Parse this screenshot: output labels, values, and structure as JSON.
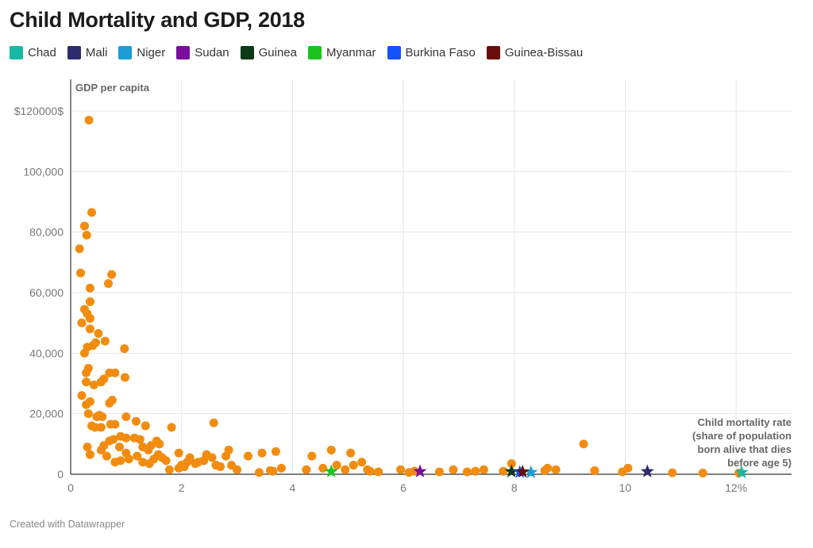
{
  "title": "Child Mortality and GDP, 2018",
  "footer": "Created with Datawrapper",
  "legend": [
    {
      "name": "Chad",
      "color": "#17b9a4"
    },
    {
      "name": "Mali",
      "color": "#2e2a6e"
    },
    {
      "name": "Niger",
      "color": "#1c9dd3"
    },
    {
      "name": "Sudan",
      "color": "#7a0e9c"
    },
    {
      "name": "Guinea",
      "color": "#0b3a14"
    },
    {
      "name": "Myanmar",
      "color": "#1bc41b"
    },
    {
      "name": "Burkina Faso",
      "color": "#1552ff"
    },
    {
      "name": "Guinea-Bissau",
      "color": "#6b0d0d"
    }
  ],
  "chart_data": {
    "type": "scatter",
    "title": "Child Mortality and GDP, 2018",
    "ylabel": "GDP per capita",
    "xlabel_lines": [
      "Child mortality rate",
      "(share of population",
      "born alive that dies",
      "before age 5)"
    ],
    "xlim": [
      0,
      13
    ],
    "ylim": [
      0,
      120000
    ],
    "x_ticks": [
      {
        "value": 0,
        "label": "0"
      },
      {
        "value": 2,
        "label": "2"
      },
      {
        "value": 4,
        "label": "4"
      },
      {
        "value": 6,
        "label": "6"
      },
      {
        "value": 8,
        "label": "8"
      },
      {
        "value": 10,
        "label": "10"
      },
      {
        "value": 12,
        "label": "12%"
      }
    ],
    "y_ticks": [
      {
        "value": 0,
        "label": "0"
      },
      {
        "value": 20000,
        "label": "20,000"
      },
      {
        "value": 40000,
        "label": "40,000"
      },
      {
        "value": 60000,
        "label": "60,000"
      },
      {
        "value": 80000,
        "label": "80,000"
      },
      {
        "value": 100000,
        "label": "100,000"
      },
      {
        "value": 120000,
        "label": "$120000$"
      }
    ],
    "grid": true,
    "dot_color": "#f28c0f",
    "highlighted": [
      {
        "name": "Chad",
        "x": 12.1,
        "y": 600
      },
      {
        "name": "Mali",
        "x": 10.4,
        "y": 900
      },
      {
        "name": "Niger",
        "x": 8.3,
        "y": 600
      },
      {
        "name": "Sudan",
        "x": 6.3,
        "y": 900
      },
      {
        "name": "Guinea",
        "x": 7.95,
        "y": 900
      },
      {
        "name": "Myanmar",
        "x": 4.7,
        "y": 900
      },
      {
        "name": "Burkina Faso",
        "x": 8.1,
        "y": 700
      },
      {
        "name": "Guinea-Bissau",
        "x": 8.15,
        "y": 800
      }
    ],
    "points": [
      [
        0.33,
        117000
      ],
      [
        0.38,
        86500
      ],
      [
        0.25,
        82000
      ],
      [
        0.29,
        79000
      ],
      [
        0.16,
        74500
      ],
      [
        0.74,
        66000
      ],
      [
        0.18,
        66500
      ],
      [
        0.68,
        63000
      ],
      [
        0.35,
        61500
      ],
      [
        0.35,
        57000
      ],
      [
        0.25,
        54500
      ],
      [
        0.3,
        53000
      ],
      [
        0.35,
        51500
      ],
      [
        0.2,
        50000
      ],
      [
        0.35,
        48000
      ],
      [
        0.5,
        46500
      ],
      [
        0.45,
        43500
      ],
      [
        0.62,
        44000
      ],
      [
        0.3,
        42000
      ],
      [
        0.4,
        42500
      ],
      [
        0.97,
        41500
      ],
      [
        0.25,
        40000
      ],
      [
        0.28,
        33500
      ],
      [
        0.32,
        35000
      ],
      [
        0.28,
        30500
      ],
      [
        0.42,
        29500
      ],
      [
        0.55,
        30500
      ],
      [
        0.6,
        31500
      ],
      [
        0.7,
        33500
      ],
      [
        0.8,
        33500
      ],
      [
        0.98,
        32000
      ],
      [
        0.2,
        26000
      ],
      [
        0.7,
        23500
      ],
      [
        0.28,
        23000
      ],
      [
        0.35,
        24000
      ],
      [
        0.75,
        24500
      ],
      [
        0.8,
        16500
      ],
      [
        0.32,
        20000
      ],
      [
        0.47,
        19000
      ],
      [
        0.52,
        19500
      ],
      [
        0.57,
        19000
      ],
      [
        1.0,
        19000
      ],
      [
        1.18,
        17500
      ],
      [
        0.38,
        16000
      ],
      [
        0.44,
        15500
      ],
      [
        0.55,
        15500
      ],
      [
        0.72,
        16500
      ],
      [
        0.9,
        12500
      ],
      [
        1.0,
        12000
      ],
      [
        1.35,
        16000
      ],
      [
        1.82,
        15500
      ],
      [
        2.58,
        17000
      ],
      [
        0.3,
        9000
      ],
      [
        0.35,
        6500
      ],
      [
        0.55,
        8000
      ],
      [
        0.6,
        9500
      ],
      [
        0.7,
        11000
      ],
      [
        0.77,
        11500
      ],
      [
        0.88,
        9000
      ],
      [
        1.0,
        7000
      ],
      [
        1.15,
        12000
      ],
      [
        1.25,
        11500
      ],
      [
        1.3,
        9000
      ],
      [
        1.4,
        8000
      ],
      [
        1.45,
        9500
      ],
      [
        1.55,
        11000
      ],
      [
        1.6,
        10000
      ],
      [
        0.65,
        6000
      ],
      [
        0.8,
        4000
      ],
      [
        0.9,
        4500
      ],
      [
        1.05,
        5000
      ],
      [
        1.2,
        6000
      ],
      [
        1.3,
        4000
      ],
      [
        1.42,
        3500
      ],
      [
        1.5,
        5000
      ],
      [
        1.58,
        6500
      ],
      [
        1.65,
        5500
      ],
      [
        1.72,
        4500
      ],
      [
        1.78,
        1500
      ],
      [
        1.95,
        7000
      ],
      [
        2.0,
        3000
      ],
      [
        2.1,
        4000
      ],
      [
        2.15,
        5500
      ],
      [
        2.25,
        3500
      ],
      [
        2.4,
        4500
      ],
      [
        2.45,
        6500
      ],
      [
        2.55,
        5500
      ],
      [
        2.62,
        3000
      ],
      [
        2.7,
        2500
      ],
      [
        2.8,
        6000
      ],
      [
        2.85,
        8000
      ],
      [
        2.9,
        3000
      ],
      [
        1.95,
        2000
      ],
      [
        2.05,
        2500
      ],
      [
        2.3,
        4000
      ],
      [
        3.0,
        1500
      ],
      [
        3.2,
        6000
      ],
      [
        3.45,
        7000
      ],
      [
        3.7,
        7500
      ],
      [
        3.8,
        2000
      ],
      [
        3.65,
        1000
      ],
      [
        4.35,
        6000
      ],
      [
        4.25,
        1500
      ],
      [
        4.55,
        2000
      ],
      [
        4.7,
        8000
      ],
      [
        4.8,
        3000
      ],
      [
        4.95,
        1500
      ],
      [
        5.05,
        7000
      ],
      [
        5.1,
        3000
      ],
      [
        5.25,
        4000
      ],
      [
        5.35,
        1500
      ],
      [
        5.4,
        1000
      ],
      [
        5.55,
        800
      ],
      [
        5.95,
        1500
      ],
      [
        6.1,
        600
      ],
      [
        6.2,
        1000
      ],
      [
        6.65,
        800
      ],
      [
        6.9,
        1500
      ],
      [
        7.15,
        800
      ],
      [
        7.3,
        1000
      ],
      [
        7.45,
        1500
      ],
      [
        7.8,
        1000
      ],
      [
        7.95,
        3500
      ],
      [
        8.55,
        1200
      ],
      [
        8.6,
        2000
      ],
      [
        8.75,
        1500
      ],
      [
        9.25,
        10000
      ],
      [
        9.45,
        1200
      ],
      [
        9.95,
        800
      ],
      [
        10.05,
        2000
      ],
      [
        10.85,
        500
      ],
      [
        11.4,
        400
      ],
      [
        12.05,
        400
      ],
      [
        3.4,
        600
      ],
      [
        3.6,
        1200
      ]
    ]
  }
}
